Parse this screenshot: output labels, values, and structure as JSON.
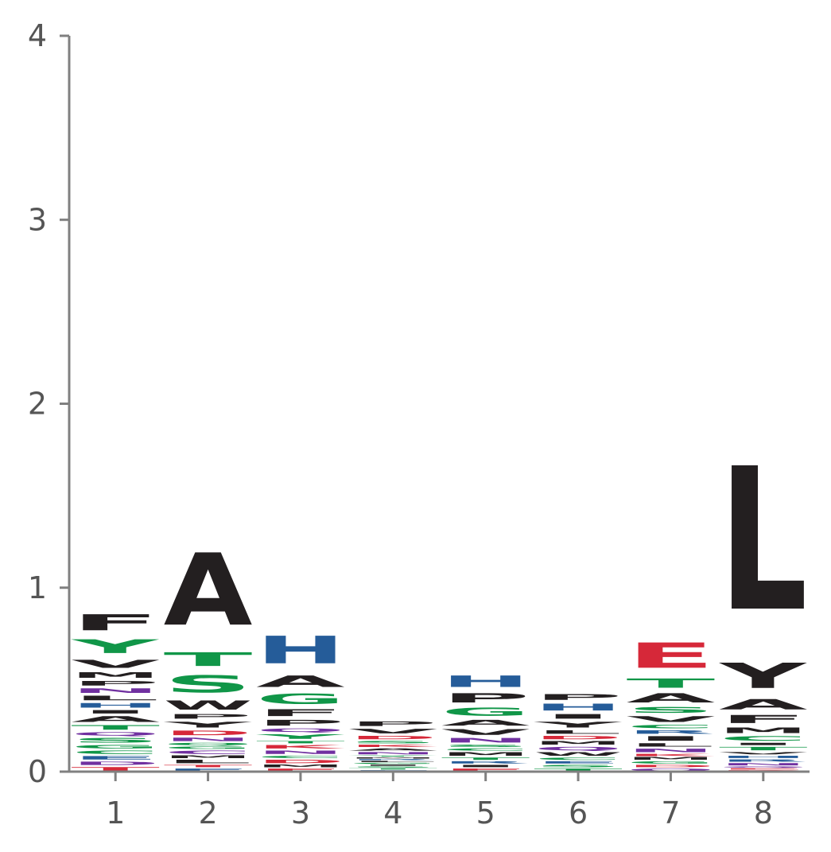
{
  "chart_data": {
    "type": "sequence-logo",
    "title": "",
    "xlabel": "",
    "ylabel": "",
    "ylim": [
      0,
      4
    ],
    "y_ticks": [
      "0",
      "1",
      "2",
      "3",
      "4"
    ],
    "x_ticks": [
      "1",
      "2",
      "3",
      "4",
      "5",
      "6",
      "7",
      "8"
    ],
    "colors": {
      "black": "#231f20",
      "green": "#109648",
      "blue": "#255c99",
      "red": "#d62839",
      "purple": "#7030a0"
    },
    "positions": [
      {
        "position": "1",
        "letters": [
          {
            "letter": "T",
            "height": 0.03,
            "color": "red"
          },
          {
            "letter": "D",
            "height": 0.03,
            "color": "purple"
          },
          {
            "letter": "E",
            "height": 0.03,
            "color": "blue"
          },
          {
            "letter": "C",
            "height": 0.03,
            "color": "green"
          },
          {
            "letter": "G",
            "height": 0.03,
            "color": "green"
          },
          {
            "letter": "S",
            "height": 0.04,
            "color": "green"
          },
          {
            "letter": "Q",
            "height": 0.03,
            "color": "purple"
          },
          {
            "letter": "T",
            "height": 0.04,
            "color": "green"
          },
          {
            "letter": "A",
            "height": 0.05,
            "color": "black"
          },
          {
            "letter": "I",
            "height": 0.03,
            "color": "black"
          },
          {
            "letter": "H",
            "height": 0.04,
            "color": "blue"
          },
          {
            "letter": "L",
            "height": 0.04,
            "color": "black"
          },
          {
            "letter": "N",
            "height": 0.04,
            "color": "purple"
          },
          {
            "letter": "P",
            "height": 0.04,
            "color": "black"
          },
          {
            "letter": "M",
            "height": 0.05,
            "color": "black"
          },
          {
            "letter": "V",
            "height": 0.07,
            "color": "black"
          },
          {
            "letter": "Y",
            "height": 0.12,
            "color": "green"
          },
          {
            "letter": "F",
            "height": 0.14,
            "color": "black"
          }
        ]
      },
      {
        "position": "2",
        "letters": [
          {
            "letter": "E",
            "height": 0.02,
            "color": "blue"
          },
          {
            "letter": "T",
            "height": 0.02,
            "color": "red"
          },
          {
            "letter": "L",
            "height": 0.03,
            "color": "black"
          },
          {
            "letter": "M",
            "height": 0.02,
            "color": "black"
          },
          {
            "letter": "C",
            "height": 0.03,
            "color": "purple"
          },
          {
            "letter": "G",
            "height": 0.02,
            "color": "green"
          },
          {
            "letter": "Q",
            "height": 0.02,
            "color": "green"
          },
          {
            "letter": "N",
            "height": 0.03,
            "color": "purple"
          },
          {
            "letter": "D",
            "height": 0.04,
            "color": "red"
          },
          {
            "letter": "Y",
            "height": 0.05,
            "color": "black"
          },
          {
            "letter": "P",
            "height": 0.04,
            "color": "black"
          },
          {
            "letter": "W",
            "height": 0.08,
            "color": "black"
          },
          {
            "letter": "S",
            "height": 0.15,
            "color": "green"
          },
          {
            "letter": "T",
            "height": 0.12,
            "color": "green"
          },
          {
            "letter": "A",
            "height": 0.63,
            "color": "black"
          }
        ]
      },
      {
        "position": "3",
        "letters": [
          {
            "letter": "E",
            "height": 0.02,
            "color": "red"
          },
          {
            "letter": "M",
            "height": 0.02,
            "color": "black"
          },
          {
            "letter": "D",
            "height": 0.03,
            "color": "red"
          },
          {
            "letter": "C",
            "height": 0.02,
            "color": "green"
          },
          {
            "letter": "N",
            "height": 0.03,
            "color": "purple"
          },
          {
            "letter": "K",
            "height": 0.03,
            "color": "red"
          },
          {
            "letter": "T",
            "height": 0.02,
            "color": "green"
          },
          {
            "letter": "Y",
            "height": 0.04,
            "color": "green"
          },
          {
            "letter": "Q",
            "height": 0.03,
            "color": "purple"
          },
          {
            "letter": "P",
            "height": 0.05,
            "color": "black"
          },
          {
            "letter": "F",
            "height": 0.06,
            "color": "black"
          },
          {
            "letter": "G",
            "height": 0.09,
            "color": "green"
          },
          {
            "letter": "A",
            "height": 0.1,
            "color": "black"
          },
          {
            "letter": "H",
            "height": 0.24,
            "color": "blue"
          }
        ]
      },
      {
        "position": "4",
        "letters": [
          {
            "letter": "E",
            "height": 0.01,
            "color": "blue"
          },
          {
            "letter": "T",
            "height": 0.01,
            "color": "green"
          },
          {
            "letter": "S",
            "height": 0.01,
            "color": "green"
          },
          {
            "letter": "I",
            "height": 0.01,
            "color": "black"
          },
          {
            "letter": "G",
            "height": 0.01,
            "color": "green"
          },
          {
            "letter": "L",
            "height": 0.01,
            "color": "black"
          },
          {
            "letter": "R",
            "height": 0.01,
            "color": "blue"
          },
          {
            "letter": "M",
            "height": 0.01,
            "color": "black"
          },
          {
            "letter": "Y",
            "height": 0.01,
            "color": "green"
          },
          {
            "letter": "N",
            "height": 0.02,
            "color": "purple"
          },
          {
            "letter": "A",
            "height": 0.02,
            "color": "black"
          },
          {
            "letter": "K",
            "height": 0.02,
            "color": "red"
          },
          {
            "letter": "S",
            "height": 0.02,
            "color": "green"
          },
          {
            "letter": "D",
            "height": 0.03,
            "color": "red"
          },
          {
            "letter": "V",
            "height": 0.04,
            "color": "black"
          },
          {
            "letter": "P",
            "height": 0.04,
            "color": "black"
          }
        ]
      },
      {
        "position": "5",
        "letters": [
          {
            "letter": "E",
            "height": 0.02,
            "color": "red"
          },
          {
            "letter": "I",
            "height": 0.02,
            "color": "black"
          },
          {
            "letter": "R",
            "height": 0.02,
            "color": "blue"
          },
          {
            "letter": "T",
            "height": 0.02,
            "color": "green"
          },
          {
            "letter": "M",
            "height": 0.03,
            "color": "black"
          },
          {
            "letter": "C",
            "height": 0.02,
            "color": "green"
          },
          {
            "letter": "S",
            "height": 0.02,
            "color": "green"
          },
          {
            "letter": "N",
            "height": 0.04,
            "color": "purple"
          },
          {
            "letter": "V",
            "height": 0.05,
            "color": "black"
          },
          {
            "letter": "A",
            "height": 0.05,
            "color": "black"
          },
          {
            "letter": "G",
            "height": 0.07,
            "color": "green"
          },
          {
            "letter": "P",
            "height": 0.08,
            "color": "black"
          },
          {
            "letter": "H",
            "height": 0.1,
            "color": "blue"
          }
        ]
      },
      {
        "position": "6",
        "letters": [
          {
            "letter": "T",
            "height": 0.02,
            "color": "green"
          },
          {
            "letter": "S",
            "height": 0.02,
            "color": "green"
          },
          {
            "letter": "E",
            "height": 0.02,
            "color": "blue"
          },
          {
            "letter": "C",
            "height": 0.02,
            "color": "green"
          },
          {
            "letter": "W",
            "height": 0.03,
            "color": "black"
          },
          {
            "letter": "Q",
            "height": 0.03,
            "color": "purple"
          },
          {
            "letter": "M",
            "height": 0.03,
            "color": "black"
          },
          {
            "letter": "D",
            "height": 0.03,
            "color": "red"
          },
          {
            "letter": "L",
            "height": 0.03,
            "color": "black"
          },
          {
            "letter": "Y",
            "height": 0.05,
            "color": "black"
          },
          {
            "letter": "I",
            "height": 0.04,
            "color": "black"
          },
          {
            "letter": "H",
            "height": 0.06,
            "color": "blue"
          },
          {
            "letter": "P",
            "height": 0.05,
            "color": "black"
          }
        ]
      },
      {
        "position": "7",
        "letters": [
          {
            "letter": "Q",
            "height": 0.02,
            "color": "purple"
          },
          {
            "letter": "D",
            "height": 0.02,
            "color": "red"
          },
          {
            "letter": "G",
            "height": 0.02,
            "color": "green"
          },
          {
            "letter": "M",
            "height": 0.02,
            "color": "black"
          },
          {
            "letter": "K",
            "height": 0.02,
            "color": "red"
          },
          {
            "letter": "N",
            "height": 0.03,
            "color": "purple"
          },
          {
            "letter": "L",
            "height": 0.03,
            "color": "black"
          },
          {
            "letter": "I",
            "height": 0.04,
            "color": "black"
          },
          {
            "letter": "R",
            "height": 0.03,
            "color": "blue"
          },
          {
            "letter": "C",
            "height": 0.03,
            "color": "green"
          },
          {
            "letter": "V",
            "height": 0.05,
            "color": "black"
          },
          {
            "letter": "S",
            "height": 0.05,
            "color": "green"
          },
          {
            "letter": "A",
            "height": 0.08,
            "color": "black"
          },
          {
            "letter": "T",
            "height": 0.08,
            "color": "green"
          },
          {
            "letter": "E",
            "height": 0.22,
            "color": "red"
          }
        ]
      },
      {
        "position": "8",
        "letters": [
          {
            "letter": "D",
            "height": 0.01,
            "color": "red"
          },
          {
            "letter": "E",
            "height": 0.01,
            "color": "red"
          },
          {
            "letter": "Q",
            "height": 0.01,
            "color": "purple"
          },
          {
            "letter": "N",
            "height": 0.02,
            "color": "purple"
          },
          {
            "letter": "R",
            "height": 0.02,
            "color": "blue"
          },
          {
            "letter": "H",
            "height": 0.02,
            "color": "blue"
          },
          {
            "letter": "V",
            "height": 0.02,
            "color": "black"
          },
          {
            "letter": "T",
            "height": 0.03,
            "color": "green"
          },
          {
            "letter": "I",
            "height": 0.02,
            "color": "black"
          },
          {
            "letter": "C",
            "height": 0.04,
            "color": "green"
          },
          {
            "letter": "M",
            "height": 0.05,
            "color": "black"
          },
          {
            "letter": "F",
            "height": 0.07,
            "color": "black"
          },
          {
            "letter": "A",
            "height": 0.09,
            "color": "black"
          },
          {
            "letter": "Y",
            "height": 0.22,
            "color": "black"
          },
          {
            "letter": "L",
            "height": 1.25,
            "color": "black"
          }
        ]
      }
    ]
  }
}
